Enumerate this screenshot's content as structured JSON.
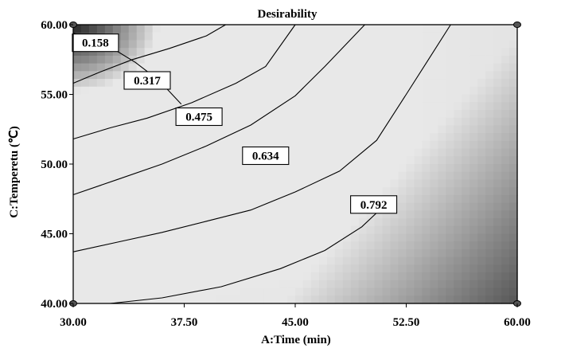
{
  "chart_data": {
    "type": "heatmap",
    "title": "Desirability",
    "xlabel": "A:Time (min)",
    "ylabel": "C:Temperetu (℃)",
    "xlim": [
      30,
      60
    ],
    "ylim": [
      40,
      60
    ],
    "x_ticks": [
      "30.00",
      "37.50",
      "45.00",
      "52.50",
      "60.00"
    ],
    "y_ticks": [
      "40.00",
      "45.00",
      "50.00",
      "55.00",
      "60.00"
    ],
    "colormap": "grayscale",
    "contours": [
      {
        "level": "0.158",
        "label_at": [
          31.5,
          58.7
        ],
        "points": [
          [
            30,
            59.4
          ],
          [
            30.9,
            59.1
          ],
          [
            32.5,
            58.4
          ],
          [
            34.2,
            57.3
          ],
          [
            35.8,
            56.0
          ],
          [
            37.3,
            54.3
          ]
        ]
      },
      {
        "level": "0.317",
        "label_at": [
          35.0,
          56.0
        ],
        "points": [
          [
            30,
            55.8
          ],
          [
            31.8,
            56.6
          ],
          [
            34.0,
            57.5
          ],
          [
            36.5,
            58.3
          ],
          [
            39.0,
            59.2
          ],
          [
            40.3,
            60
          ]
        ]
      },
      {
        "level": "0.475",
        "label_at": [
          38.5,
          53.4
        ],
        "points": [
          [
            30,
            51.8
          ],
          [
            32.5,
            52.6
          ],
          [
            35.0,
            53.3
          ],
          [
            38.0,
            54.4
          ],
          [
            41.0,
            55.8
          ],
          [
            43.0,
            57.0
          ],
          [
            45.0,
            60
          ]
        ]
      },
      {
        "level": "0.634",
        "label_at": [
          43.0,
          50.6
        ],
        "points": [
          [
            30,
            47.8
          ],
          [
            33.0,
            48.9
          ],
          [
            36.0,
            50.0
          ],
          [
            39.0,
            51.3
          ],
          [
            42.0,
            52.8
          ],
          [
            45.0,
            54.9
          ],
          [
            47.0,
            57.0
          ],
          [
            49.7,
            60
          ]
        ]
      },
      {
        "level": "0.792",
        "label_at": [
          50.3,
          47.1
        ],
        "points": [
          [
            30,
            43.7
          ],
          [
            33.0,
            44.4
          ],
          [
            36.0,
            45.1
          ],
          [
            39.0,
            45.9
          ],
          [
            42.0,
            46.7
          ],
          [
            45.0,
            48.0
          ],
          [
            48.0,
            49.5
          ],
          [
            50.5,
            51.7
          ],
          [
            52.5,
            55.0
          ],
          [
            54.0,
            57.5
          ],
          [
            55.5,
            60
          ]
        ]
      },
      {
        "level": "",
        "label_at": null,
        "points": [
          [
            32.5,
            40
          ],
          [
            36.0,
            40.4
          ],
          [
            40.0,
            41.2
          ],
          [
            44.0,
            42.5
          ],
          [
            47.0,
            43.8
          ],
          [
            49.5,
            45.5
          ],
          [
            51.0,
            47.0
          ]
        ]
      }
    ]
  }
}
